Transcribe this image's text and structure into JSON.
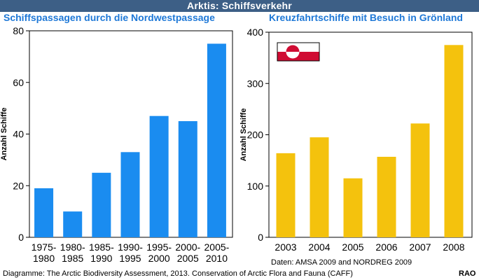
{
  "header": {
    "title": "Arktis: Schiffsverkehr"
  },
  "colors": {
    "header_bg": "#3d5f86",
    "subtitle": "#1e78d7",
    "left_bars": "#1a8cf0",
    "right_bars": "#f4c20d",
    "flag_red": "#d00c33"
  },
  "chart_data": [
    {
      "type": "bar",
      "title": "Schiffspassagen durch die Nordwestpassage",
      "ylabel": "Anzahl Schiffe",
      "xlabel": "",
      "categories": [
        "1975-\n1980",
        "1980-\n1985",
        "1985-\n1990",
        "1990-\n1995",
        "1995-\n2000",
        "2000-\n2005",
        "2005-\n2010"
      ],
      "values": [
        19,
        10,
        25,
        33,
        47,
        45,
        75
      ],
      "ylim": [
        0,
        80
      ],
      "yticks": [
        0,
        20,
        40,
        60,
        80
      ],
      "grid": false
    },
    {
      "type": "bar",
      "title": "Kreuzfahrtschiffe mit Besuch in Grönland",
      "ylabel": "Anzahl Schiffe",
      "xlabel": "",
      "categories": [
        "2003",
        "2004",
        "2005",
        "2006",
        "2007",
        "2008"
      ],
      "values": [
        164,
        195,
        115,
        157,
        222,
        375
      ],
      "ylim": [
        0,
        400
      ],
      "yticks": [
        0,
        100,
        200,
        300,
        400
      ],
      "grid": false,
      "inset": "greenland-flag"
    }
  ],
  "footer": {
    "credit": "Diagramme: The Arctic Biodiversity Assessment, 2013. Conservation of Arctic Flora and Fauna (CAFF)",
    "data_source": "Daten: AMSA 2009 and NORDREG 2009",
    "author": "RAO"
  }
}
